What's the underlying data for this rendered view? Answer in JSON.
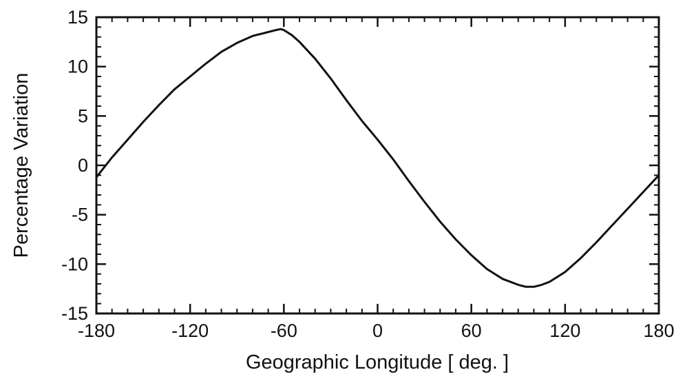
{
  "chart_data": {
    "type": "line",
    "title": "",
    "xlabel": "Geographic  Longitude  [ deg. ]",
    "ylabel": "Percentage  Variation",
    "xlim": [
      -180,
      180
    ],
    "ylim": [
      -15,
      15
    ],
    "xticks": [
      -180,
      -120,
      -60,
      0,
      60,
      120,
      180
    ],
    "xtick_labels": [
      "-180",
      "-120",
      "-60",
      "0",
      "60",
      "120",
      "180"
    ],
    "yticks": [
      -15,
      -10,
      -5,
      0,
      5,
      10,
      15
    ],
    "ytick_labels": [
      "-15",
      "-10",
      "-5",
      "0",
      "5",
      "10",
      "15"
    ],
    "x_minor_step": 10,
    "y_minor_step": 1,
    "grid": false,
    "legend": "none",
    "line_color": "#111111",
    "series": [
      {
        "x": [
          -180,
          -170,
          -160,
          -150,
          -140,
          -130,
          -120,
          -110,
          -100,
          -90,
          -80,
          -70,
          -65,
          -62,
          -60,
          -55,
          -50,
          -40,
          -30,
          -20,
          -10,
          0,
          10,
          20,
          30,
          40,
          50,
          60,
          70,
          80,
          90,
          95,
          98,
          100,
          105,
          110,
          120,
          130,
          140,
          150,
          160,
          170,
          180
        ],
        "y": [
          -1.2,
          0.8,
          2.6,
          4.4,
          6.1,
          7.7,
          9.0,
          10.3,
          11.5,
          12.4,
          13.1,
          13.5,
          13.7,
          13.8,
          13.7,
          13.2,
          12.5,
          10.8,
          8.8,
          6.6,
          4.5,
          2.6,
          0.6,
          -1.6,
          -3.7,
          -5.7,
          -7.5,
          -9.1,
          -10.5,
          -11.5,
          -12.1,
          -12.3,
          -12.3,
          -12.3,
          -12.1,
          -11.8,
          -10.8,
          -9.4,
          -7.8,
          -6.1,
          -4.4,
          -2.7,
          -1.0
        ]
      }
    ]
  }
}
